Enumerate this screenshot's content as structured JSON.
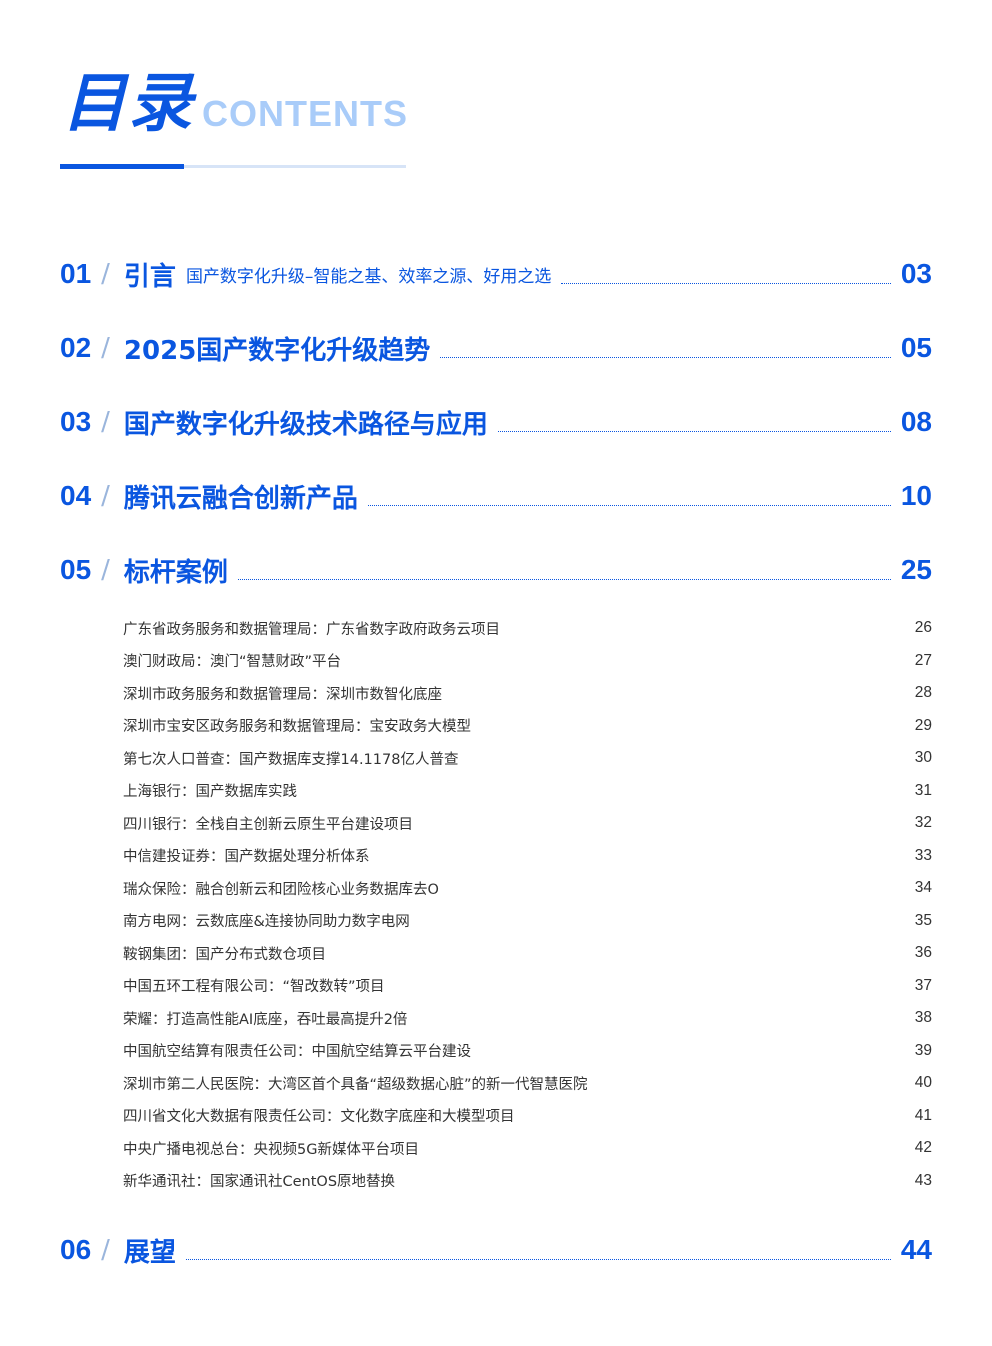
{
  "header": {
    "title_cn": "目录",
    "title_en": "CONTENTS"
  },
  "sections": [
    {
      "num": "01",
      "title": "引言",
      "subtitle": "国产数字化升级–智能之基、效率之源、好用之选",
      "page": "03"
    },
    {
      "num": "02",
      "title": "2025国产数字化升级趋势",
      "subtitle": "",
      "page": "05"
    },
    {
      "num": "03",
      "title": "国产数字化升级技术路径与应用",
      "subtitle": "",
      "page": "08"
    },
    {
      "num": "04",
      "title": "腾讯云融合创新产品",
      "subtitle": "",
      "page": "10"
    },
    {
      "num": "05",
      "title": "标杆案例",
      "subtitle": "",
      "page": "25"
    },
    {
      "num": "06",
      "title": "展望",
      "subtitle": "",
      "page": "44"
    }
  ],
  "slash": "/",
  "cases": [
    {
      "label": "广东省政务服务和数据管理局：广东省数字政府政务云项目",
      "page": "26"
    },
    {
      "label": "澳门财政局：澳门“智慧财政”平台",
      "page": "27"
    },
    {
      "label": "深圳市政务服务和数据管理局：深圳市数智化底座",
      "page": "28"
    },
    {
      "label": "深圳市宝安区政务服务和数据管理局：宝安政务大模型",
      "page": "29"
    },
    {
      "label": "第七次人口普查：国产数据库支撑14.1178亿人普查",
      "page": "30"
    },
    {
      "label": "上海银行：国产数据库实践",
      "page": "31"
    },
    {
      "label": "四川银行：全栈自主创新云原生平台建设项目",
      "page": "32"
    },
    {
      "label": "中信建投证券：国产数据处理分析体系",
      "page": "33"
    },
    {
      "label": "瑞众保险：融合创新云和团险核心业务数据库去O",
      "page": "34"
    },
    {
      "label": "南方电网：云数底座&连接协同助力数字电网",
      "page": "35"
    },
    {
      "label": "鞍钢集团：国产分布式数仓项目",
      "page": "36"
    },
    {
      "label": "中国五环工程有限公司：“智改数转”项目",
      "page": "37"
    },
    {
      "label": "荣耀：打造高性能AI底座，吞吐最高提升2倍",
      "page": "38"
    },
    {
      "label": "中国航空结算有限责任公司：中国航空结算云平台建设",
      "page": "39"
    },
    {
      "label": "深圳市第二人民医院：大湾区首个具备“超级数据心脏”的新一代智慧医院",
      "page": "40"
    },
    {
      "label": "四川省文化大数据有限责任公司：文化数字底座和大模型项目",
      "page": "41"
    },
    {
      "label": "中央广播电视总台：央视频5G新媒体平台项目",
      "page": "42"
    },
    {
      "label": "新华通讯社：国家通讯社CentOS原地替换",
      "page": "43"
    }
  ],
  "colors": {
    "accent": "#0a56e0",
    "light_accent": "#a9ccf9",
    "text": "#333333"
  }
}
